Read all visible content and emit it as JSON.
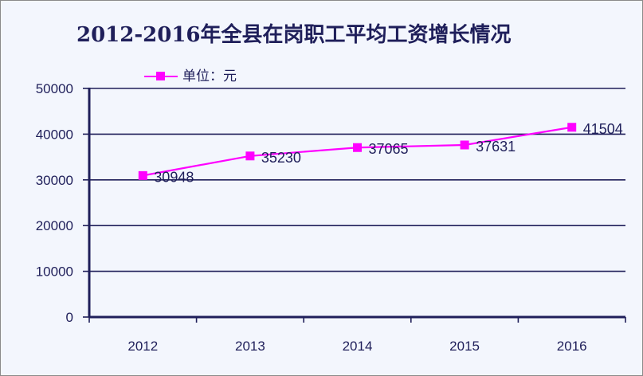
{
  "chart_data": {
    "type": "line",
    "title": "2012-2016年全县在岗职工平均工资增长情况",
    "legend": {
      "label": "单位：元",
      "position": "top-left"
    },
    "categories": [
      "2012",
      "2013",
      "2014",
      "2015",
      "2016"
    ],
    "series": [
      {
        "name": "单位：元",
        "values": [
          30948,
          35230,
          37065,
          37631,
          41504
        ],
        "color": "#ff00ff"
      }
    ],
    "y_ticks": [
      "0",
      "10000",
      "20000",
      "30000",
      "40000",
      "50000"
    ],
    "ylim": [
      0,
      50000
    ],
    "grid": true,
    "data_labels": true
  },
  "colors": {
    "line": "#ff00ff",
    "axis": "#1f1f5a",
    "grid": "#1f1f5a",
    "background": "#f3f6fd"
  }
}
